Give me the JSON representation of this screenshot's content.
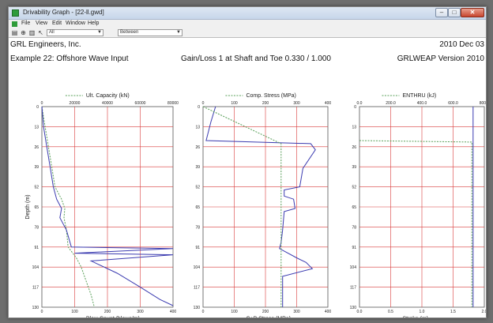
{
  "window": {
    "title": "Drivability Graph - [22-ll.gwd]",
    "controls": {
      "minimize": "–",
      "maximize": "□",
      "close": "✕"
    }
  },
  "menu": [
    "File",
    "View",
    "Edit",
    "Window",
    "Help"
  ],
  "toolbar": {
    "buttons": [
      "printer-icon",
      "zoom-icon",
      "chart-icon",
      "pointer-icon"
    ],
    "select_1": "All",
    "select_2": "Between"
  },
  "header": {
    "company": "GRL Engineers, Inc.",
    "date": "2010 Dec 03",
    "example": "Example 22: Offshore Wave Input",
    "gain_loss": "Gain/Loss 1 at Shaft and Toe 0.330 / 1.000",
    "version": "GRLWEAP Version 2010"
  },
  "colors": {
    "grid": "#d83a3a",
    "series_blue": "#3b3bb0",
    "series_green": "#5aa05a"
  },
  "chart_data": [
    {
      "type": "line",
      "panel": "left",
      "top_legend": "Ult. Capacity (kN)",
      "top_ticks": [
        "0",
        "20000",
        "40000",
        "60000",
        "80000"
      ],
      "top_range": [
        0,
        80000
      ],
      "bottom_legend": "Blow Count (blows/m)",
      "bottom_ticks": [
        "0",
        "100",
        "200",
        "300",
        "400"
      ],
      "bottom_range": [
        0,
        400
      ],
      "ylabel": "Depth (m)",
      "y_ticks": [
        "13",
        "26",
        "39",
        "52",
        "65",
        "78",
        "91",
        "104",
        "117",
        "130"
      ],
      "y_range": [
        130,
        0
      ],
      "series": [
        {
          "name": "Ult. Capacity (kN)",
          "axis": "top",
          "color": "green",
          "dashed": true,
          "points": [
            [
              0,
              0
            ],
            [
              2000,
              13
            ],
            [
              4000,
              26
            ],
            [
              6000,
              39
            ],
            [
              8000,
              52
            ],
            [
              12000,
              60
            ],
            [
              14000,
              66
            ],
            [
              13500,
              72
            ],
            [
              15000,
              80
            ],
            [
              16000,
              91
            ],
            [
              21000,
              98
            ],
            [
              24000,
              104
            ],
            [
              27000,
              113
            ],
            [
              30000,
              122
            ],
            [
              32000,
              130
            ]
          ]
        },
        {
          "name": "Blow Count (blows/m)",
          "axis": "bottom",
          "color": "blue",
          "dashed": false,
          "points": [
            [
              0,
              0
            ],
            [
              5,
              13
            ],
            [
              15,
              26
            ],
            [
              25,
              39
            ],
            [
              35,
              52
            ],
            [
              45,
              60
            ],
            [
              60,
              66
            ],
            [
              55,
              72
            ],
            [
              75,
              80
            ],
            [
              90,
              91
            ],
            [
              400,
              92
            ],
            [
              100,
              95
            ],
            [
              400,
              96
            ],
            [
              150,
              100
            ],
            [
              230,
              108
            ],
            [
              300,
              117
            ],
            [
              360,
              125
            ],
            [
              400,
              129
            ]
          ]
        }
      ]
    },
    {
      "type": "line",
      "panel": "middle",
      "top_legend": "Comp. Stress (MPa)",
      "top_ticks": [
        "0",
        "100",
        "200",
        "300",
        "400"
      ],
      "top_range": [
        0,
        400
      ],
      "bottom_legend": "C+B Stress (MPa)",
      "bottom_ticks": [
        "0",
        "100",
        "200",
        "300",
        "400"
      ],
      "bottom_range": [
        0,
        400
      ],
      "ylabel": "",
      "y_ticks": [
        "13",
        "26",
        "39",
        "52",
        "65",
        "78",
        "91",
        "104",
        "117",
        "130"
      ],
      "y_range": [
        130,
        0
      ],
      "series": [
        {
          "name": "Comp. Stress (MPa)",
          "axis": "top",
          "color": "blue",
          "dashed": false,
          "points": [
            [
              40,
              0
            ],
            [
              25,
              10
            ],
            [
              10,
              22
            ],
            [
              345,
              24
            ],
            [
              360,
              28
            ],
            [
              320,
              40
            ],
            [
              310,
              52
            ],
            [
              260,
              54
            ],
            [
              260,
              58
            ],
            [
              290,
              60
            ],
            [
              295,
              66
            ],
            [
              260,
              68
            ],
            [
              255,
              80
            ],
            [
              250,
              88
            ],
            [
              245,
              92
            ],
            [
              300,
              98
            ],
            [
              330,
              101
            ],
            [
              350,
              105
            ],
            [
              255,
              110
            ],
            [
              255,
              130
            ]
          ]
        },
        {
          "name": "C+B Stress (MPa)",
          "axis": "bottom",
          "color": "green",
          "dashed": true,
          "points": [
            [
              0,
              0
            ],
            [
              250,
              24
            ],
            [
              250,
              130
            ]
          ]
        }
      ]
    },
    {
      "type": "line",
      "panel": "right",
      "top_legend": "ENTHRU (kJ)",
      "top_ticks": [
        "0.0",
        "200.0",
        "400.0",
        "600.0",
        "800.0"
      ],
      "top_range": [
        0,
        800
      ],
      "bottom_legend": "Stroke (m)",
      "bottom_ticks": [
        "0.0",
        "0.5",
        "1.0",
        "1.5",
        "2.0"
      ],
      "bottom_range": [
        0,
        2
      ],
      "ylabel": "",
      "y_ticks": [
        "13",
        "26",
        "39",
        "52",
        "65",
        "78",
        "91",
        "104",
        "117",
        "130"
      ],
      "y_range": [
        130,
        0
      ],
      "series": [
        {
          "name": "ENTHRU (kJ)",
          "axis": "top",
          "color": "green",
          "dashed": true,
          "points": [
            [
              0,
              22
            ],
            [
              720,
              23
            ],
            [
              720,
              130
            ]
          ]
        },
        {
          "name": "Stroke (m)",
          "axis": "bottom",
          "color": "blue",
          "dashed": false,
          "points": [
            [
              1.82,
              0
            ],
            [
              1.82,
              130
            ]
          ]
        }
      ]
    }
  ]
}
